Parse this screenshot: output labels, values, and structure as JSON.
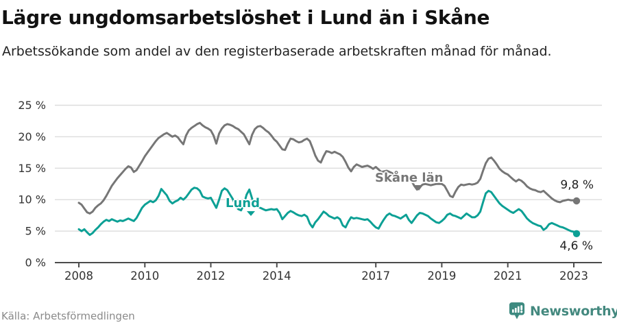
{
  "header": {
    "title": "Lägre ungdomsarbetslöshet i Lund än i Skåne",
    "subtitle": "Arbetssökande som andel av den registerbaserade arbetskraften månad för månad."
  },
  "chart_data": {
    "type": "line",
    "title": "Lägre ungdomsarbetslöshet i Lund än i Skåne",
    "subtitle": "Arbetssökande som andel av den registerbaserade arbetskraften månad för månad.",
    "x_start": "2008-01",
    "x_end": "2023-02",
    "frequency": "monthly",
    "x_tick_years": [
      2008,
      2010,
      2012,
      2014,
      2017,
      2019,
      2021,
      2023
    ],
    "x_tick_labels": [
      "2008",
      "2010",
      "2012",
      "2014",
      "2017",
      "2019",
      "2021",
      "2023"
    ],
    "y_tick_values": [
      0,
      5,
      10,
      15,
      20,
      25
    ],
    "y_tick_labels": [
      "0 %",
      "5 %",
      "10 %",
      "15 %",
      "20 %",
      "25 %"
    ],
    "ylim": [
      0,
      26
    ],
    "grid": "horizontal",
    "legend_position": "inline-labels",
    "series": [
      {
        "id": "skane",
        "name": "Skåne län",
        "color": "#767676",
        "end_label": "9,8 %",
        "values": [
          9.5,
          9.2,
          8.6,
          8.0,
          7.8,
          8.1,
          8.7,
          9.1,
          9.4,
          9.9,
          10.6,
          11.4,
          12.2,
          12.8,
          13.4,
          13.9,
          14.4,
          14.9,
          15.3,
          15.1,
          14.4,
          14.7,
          15.4,
          16.1,
          16.9,
          17.5,
          18.1,
          18.7,
          19.3,
          19.8,
          20.1,
          20.4,
          20.6,
          20.3,
          20.0,
          20.2,
          19.9,
          19.3,
          18.8,
          20.2,
          21.0,
          21.4,
          21.7,
          22.0,
          22.2,
          21.8,
          21.5,
          21.3,
          21.0,
          20.2,
          18.9,
          20.5,
          21.3,
          21.8,
          22.0,
          21.9,
          21.7,
          21.4,
          21.2,
          20.8,
          20.4,
          19.6,
          18.8,
          20.3,
          21.2,
          21.6,
          21.7,
          21.4,
          21.0,
          20.7,
          20.2,
          19.6,
          19.2,
          18.6,
          18.0,
          17.9,
          18.9,
          19.7,
          19.6,
          19.3,
          19.1,
          19.2,
          19.5,
          19.7,
          19.3,
          18.2,
          17.0,
          16.2,
          15.9,
          16.9,
          17.7,
          17.6,
          17.4,
          17.6,
          17.4,
          17.2,
          16.8,
          16.0,
          15.1,
          14.5,
          15.2,
          15.6,
          15.4,
          15.2,
          15.3,
          15.4,
          15.2,
          14.9,
          15.2,
          14.8,
          14.4,
          14.5,
          14.6,
          14.4,
          14.2,
          13.9,
          13.7,
          13.6,
          13.7,
          13.8,
          13.5,
          13.0,
          12.2,
          11.6,
          12.0,
          12.4,
          12.5,
          12.4,
          12.3,
          12.4,
          12.5,
          12.5,
          12.5,
          12.2,
          11.4,
          10.6,
          10.4,
          11.3,
          12.0,
          12.4,
          12.3,
          12.4,
          12.5,
          12.4,
          12.5,
          12.7,
          13.3,
          14.6,
          15.8,
          16.5,
          16.7,
          16.2,
          15.6,
          14.9,
          14.5,
          14.2,
          14.0,
          13.6,
          13.2,
          12.9,
          13.2,
          13.0,
          12.6,
          12.1,
          11.8,
          11.6,
          11.5,
          11.3,
          11.2,
          11.4,
          11.0,
          10.6,
          10.2,
          9.9,
          9.7,
          9.6,
          9.8,
          9.9,
          10.0,
          9.9,
          9.9,
          9.8
        ]
      },
      {
        "id": "lund",
        "name": "Lund",
        "color": "#0ca095",
        "end_label": "4,6 %",
        "values": [
          5.3,
          5.0,
          5.3,
          4.8,
          4.4,
          4.7,
          5.2,
          5.6,
          6.1,
          6.5,
          6.8,
          6.6,
          6.9,
          6.7,
          6.5,
          6.7,
          6.6,
          6.8,
          7.0,
          6.8,
          6.6,
          7.1,
          7.9,
          8.7,
          9.2,
          9.5,
          9.8,
          9.6,
          9.9,
          10.6,
          11.7,
          11.2,
          10.7,
          9.8,
          9.4,
          9.7,
          9.9,
          10.3,
          10.0,
          10.4,
          11.0,
          11.6,
          11.9,
          11.8,
          11.4,
          10.5,
          10.3,
          10.2,
          10.3,
          9.5,
          8.7,
          10.0,
          11.4,
          11.8,
          11.5,
          10.8,
          10.1,
          9.0,
          8.5,
          8.3,
          9.2,
          10.8,
          11.6,
          10.2,
          9.2,
          8.9,
          8.7,
          8.5,
          8.3,
          8.4,
          8.5,
          8.4,
          8.5,
          7.9,
          6.9,
          7.4,
          7.9,
          8.2,
          8.0,
          7.7,
          7.5,
          7.4,
          7.6,
          7.3,
          6.2,
          5.6,
          6.4,
          6.9,
          7.5,
          8.1,
          7.8,
          7.4,
          7.2,
          7.0,
          7.2,
          6.9,
          5.9,
          5.6,
          6.5,
          7.2,
          7.0,
          7.1,
          7.0,
          6.9,
          6.8,
          6.9,
          6.5,
          6.0,
          5.6,
          5.4,
          6.2,
          6.9,
          7.5,
          7.8,
          7.5,
          7.4,
          7.2,
          7.0,
          7.3,
          7.6,
          6.8,
          6.3,
          6.9,
          7.5,
          7.9,
          7.8,
          7.6,
          7.4,
          7.0,
          6.7,
          6.4,
          6.3,
          6.6,
          7.0,
          7.6,
          7.8,
          7.5,
          7.4,
          7.2,
          7.0,
          7.4,
          7.8,
          7.5,
          7.2,
          7.2,
          7.5,
          8.1,
          9.6,
          11.0,
          11.4,
          11.2,
          10.6,
          10.0,
          9.4,
          9.0,
          8.7,
          8.4,
          8.1,
          7.9,
          8.2,
          8.5,
          8.2,
          7.6,
          7.0,
          6.6,
          6.3,
          6.1,
          5.9,
          5.8,
          5.2,
          5.5,
          6.1,
          6.3,
          6.1,
          5.9,
          5.7,
          5.6,
          5.4,
          5.2,
          5.0,
          4.9,
          4.6
        ]
      }
    ]
  },
  "footer": {
    "source": "Källa: Arbetsförmedlingen",
    "brand": "Newsworthy"
  },
  "colors": {
    "lund_teal": "#0ca095",
    "skane_gray": "#767676",
    "gridline": "#dcdcdc",
    "axis": "#4b4b4b",
    "tick_text": "#333333",
    "logo_teal": "#3d8a80"
  }
}
